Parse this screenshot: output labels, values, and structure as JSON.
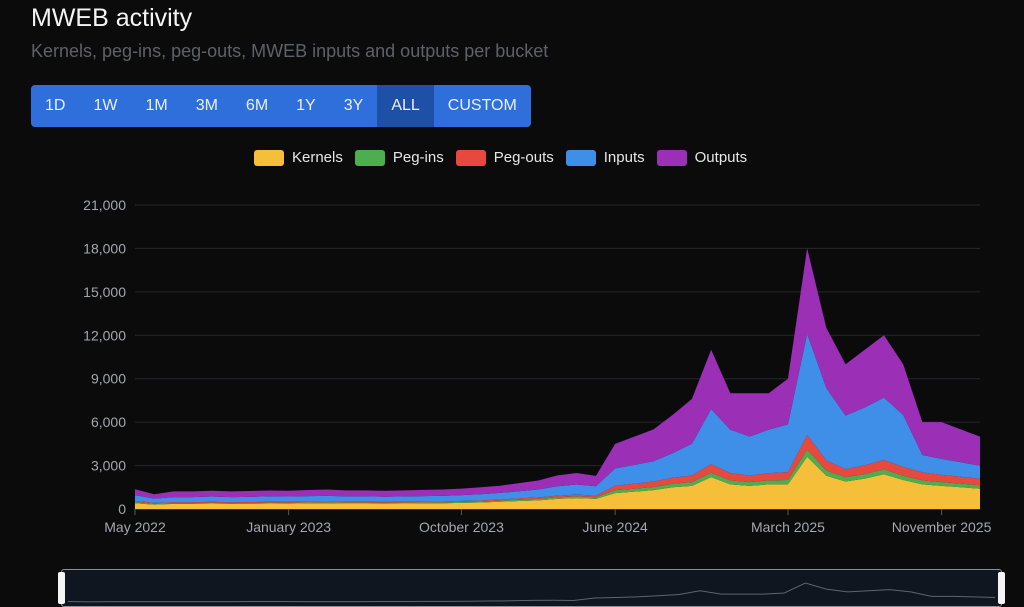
{
  "header": {
    "title": "MWEB activity",
    "subtitle": "Kernels, peg-ins, peg-outs, MWEB inputs and outputs per bucket"
  },
  "range_selector": {
    "buttons": [
      "1D",
      "1W",
      "1M",
      "3M",
      "6M",
      "1Y",
      "3Y",
      "ALL",
      "CUSTOM"
    ],
    "active": "ALL"
  },
  "colors": {
    "Kernels": "#f6bf3a",
    "Peg-ins": "#4cae50",
    "Peg-outs": "#e8493f",
    "Inputs": "#3f8ee7",
    "Outputs": "#9b2fb6"
  },
  "chart_data": {
    "type": "area",
    "stacked": true,
    "legend_position": "top",
    "grid": true,
    "ylim": [
      0,
      21000
    ],
    "yticks": [
      0,
      3000,
      6000,
      9000,
      12000,
      15000,
      18000,
      21000
    ],
    "ytick_labels": [
      "0",
      "3,000",
      "6,000",
      "9,000",
      "12,000",
      "15,000",
      "18,000",
      "21,000"
    ],
    "xticks": [
      "May 2022",
      "January 2023",
      "October 2023",
      "June 2024",
      "March 2025",
      "November 2025"
    ],
    "x": [
      "2022-05",
      "2022-06",
      "2022-07",
      "2022-08",
      "2022-09",
      "2022-10",
      "2022-11",
      "2022-12",
      "2023-01",
      "2023-02",
      "2023-03",
      "2023-04",
      "2023-05",
      "2023-06",
      "2023-07",
      "2023-08",
      "2023-09",
      "2023-10",
      "2023-11",
      "2023-12",
      "2024-01",
      "2024-02",
      "2024-03",
      "2024-04",
      "2024-05",
      "2024-06",
      "2024-07",
      "2024-08",
      "2024-09",
      "2024-10",
      "2024-11",
      "2024-12",
      "2025-01",
      "2025-02",
      "2025-03",
      "2025-04",
      "2025-05",
      "2025-06",
      "2025-07",
      "2025-08",
      "2025-09",
      "2025-10",
      "2025-11",
      "2025-12",
      "2026-01"
    ],
    "series": [
      {
        "name": "Kernels",
        "values": [
          400,
          300,
          350,
          350,
          380,
          350,
          360,
          380,
          370,
          390,
          400,
          380,
          380,
          370,
          380,
          390,
          400,
          420,
          450,
          500,
          550,
          600,
          700,
          750,
          700,
          1100,
          1200,
          1300,
          1500,
          1600,
          2200,
          1700,
          1600,
          1700,
          1700,
          3600,
          2300,
          1900,
          2100,
          2400,
          2000,
          1700,
          1600,
          1500,
          1400
        ]
      },
      {
        "name": "Peg-ins",
        "values": [
          80,
          60,
          60,
          60,
          60,
          60,
          60,
          60,
          60,
          60,
          60,
          60,
          60,
          60,
          60,
          60,
          60,
          70,
          70,
          80,
          90,
          100,
          110,
          120,
          110,
          200,
          200,
          220,
          240,
          260,
          300,
          280,
          260,
          280,
          300,
          500,
          350,
          300,
          320,
          340,
          300,
          280,
          260,
          250,
          240
        ]
      },
      {
        "name": "Peg-outs",
        "values": [
          80,
          60,
          60,
          60,
          60,
          60,
          60,
          60,
          60,
          60,
          60,
          60,
          60,
          60,
          60,
          60,
          60,
          70,
          70,
          80,
          90,
          100,
          110,
          120,
          110,
          300,
          350,
          380,
          420,
          450,
          600,
          500,
          450,
          500,
          550,
          1000,
          700,
          550,
          600,
          650,
          600,
          550,
          500,
          480,
          450
        ]
      },
      {
        "name": "Inputs",
        "values": [
          400,
          300,
          350,
          350,
          360,
          350,
          360,
          380,
          370,
          380,
          390,
          370,
          370,
          360,
          370,
          380,
          390,
          400,
          430,
          450,
          500,
          550,
          650,
          700,
          650,
          1200,
          1300,
          1400,
          1700,
          2200,
          3800,
          3000,
          2700,
          3000,
          3300,
          7000,
          5000,
          3700,
          4000,
          4300,
          3600,
          1200,
          1100,
          1000,
          900
        ]
      },
      {
        "name": "Outputs",
        "values": [
          400,
          300,
          400,
          400,
          400,
          400,
          400,
          400,
          400,
          420,
          440,
          420,
          420,
          410,
          420,
          430,
          440,
          450,
          480,
          500,
          560,
          620,
          750,
          800,
          720,
          1700,
          1950,
          2200,
          2640,
          3100,
          4100,
          2520,
          2990,
          2520,
          3150,
          5900,
          4150,
          3550,
          3980,
          4310,
          3500,
          2270,
          2540,
          2270,
          2010
        ]
      }
    ]
  }
}
